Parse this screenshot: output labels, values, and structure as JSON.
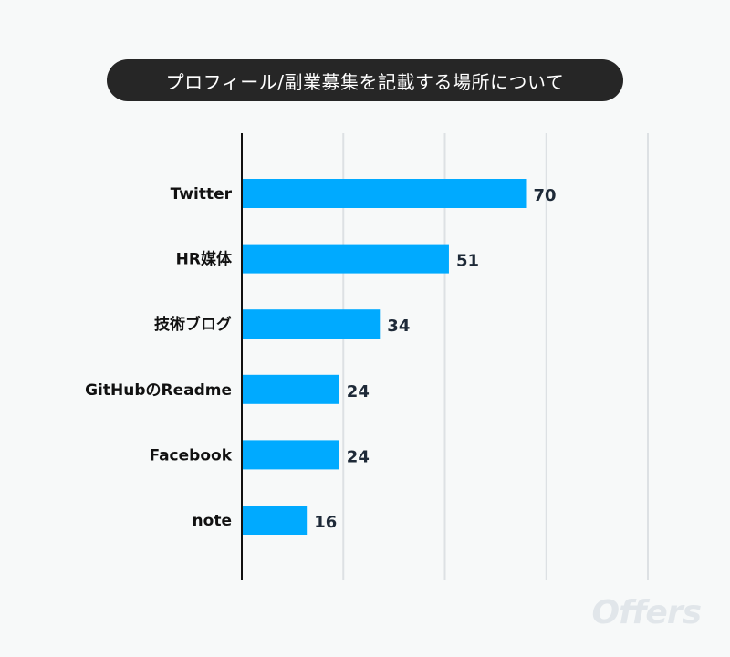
{
  "chart_data": {
    "type": "bar",
    "orientation": "horizontal",
    "title": "プロフィール/副業募集を記載する場所について",
    "categories": [
      "Twitter",
      "HR媒体",
      "技術ブログ",
      "GitHubのReadme",
      "Facebook",
      "note"
    ],
    "values": [
      70,
      51,
      34,
      24,
      24,
      16
    ],
    "xlim": [
      0,
      100
    ],
    "grid": true,
    "bar_color": "#00aaff",
    "label_color": "#1e2a38"
  },
  "watermark": "Offers"
}
